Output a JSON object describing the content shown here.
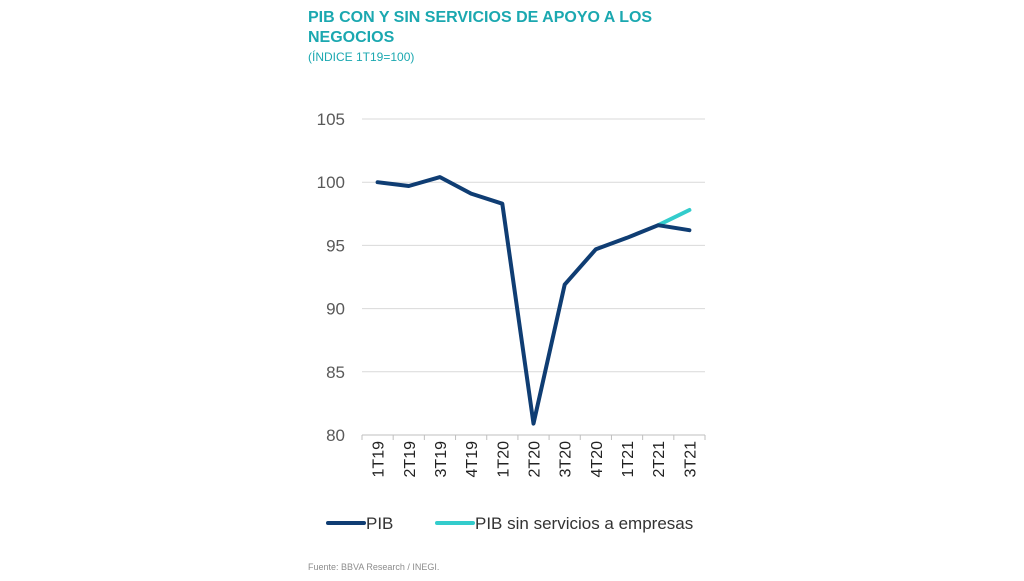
{
  "header": {
    "title": "PIB CON Y SIN SERVICIOS DE APOYO A LOS NEGOCIOS",
    "subtitle": "(ÍNDICE 1T19=100)"
  },
  "footer": {
    "source": "Fuente: BBVA Research / INEGI."
  },
  "colors": {
    "title": "#1ba8b0",
    "pib": "#0f3d73",
    "pib_sin": "#33cccc",
    "grid": "#d9d9d9"
  },
  "chart_data": {
    "type": "line",
    "categories": [
      "1T19",
      "2T19",
      "3T19",
      "4T19",
      "1T20",
      "2T20",
      "3T20",
      "4T20",
      "1T21",
      "2T21",
      "3T21"
    ],
    "ylim": [
      80,
      105
    ],
    "yticks": [
      80,
      85,
      90,
      95,
      100,
      105
    ],
    "grid": true,
    "legend_position": "bottom",
    "series": [
      {
        "name": "PIB",
        "color": "#0f3d73",
        "values": [
          100.0,
          99.7,
          100.4,
          99.1,
          98.3,
          80.9,
          91.9,
          94.7,
          95.6,
          96.6,
          96.2
        ]
      },
      {
        "name": "PIB sin servicios a empresas",
        "color": "#33cccc",
        "values": [
          null,
          null,
          null,
          null,
          null,
          null,
          null,
          null,
          null,
          96.6,
          97.8
        ]
      }
    ]
  }
}
